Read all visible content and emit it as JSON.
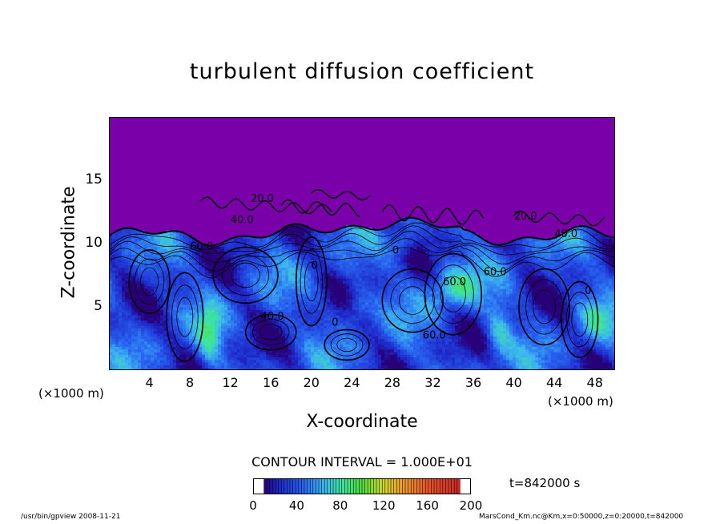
{
  "chart_data": {
    "type": "heatmap",
    "title": "turbulent diffusion coefficient",
    "xlabel": "X-coordinate",
    "ylabel": "Z-coordinate",
    "x_unit": "(×1000 m)",
    "y_unit": "(×1000 m)",
    "xlim": [
      0,
      50
    ],
    "ylim": [
      0,
      20
    ],
    "x_ticks": [
      "4",
      "8",
      "12",
      "16",
      "20",
      "24",
      "28",
      "32",
      "36",
      "40",
      "44",
      "48"
    ],
    "y_ticks": [
      "5",
      "10",
      "15"
    ],
    "contour_interval": "CONTOUR INTERVAL = 1.000E+01",
    "contour_labels": [
      "60.0",
      "20.0",
      "40.0",
      "0",
      "0",
      "60.0",
      "40.0",
      "60.0",
      "40.0",
      "0",
      "60.0",
      "20.0",
      "0"
    ],
    "colorbar": {
      "min": 0,
      "max": 200,
      "ticks": [
        "0",
        "40",
        "80",
        "120",
        "160",
        "200"
      ]
    },
    "time": "t=842000 s",
    "colors": {
      "upper": "#7a00aa",
      "deep_blue": "#1a2fd0",
      "mid_blue": "#2f6ff0",
      "cyan": "#3fd0f0",
      "green": "#3af08a"
    }
  },
  "footer": {
    "left": "/usr/bin/gpview   2008-11-21",
    "right": "MarsCond_Km.nc@Km,x=0:50000,z=0:20000,t=842000"
  }
}
